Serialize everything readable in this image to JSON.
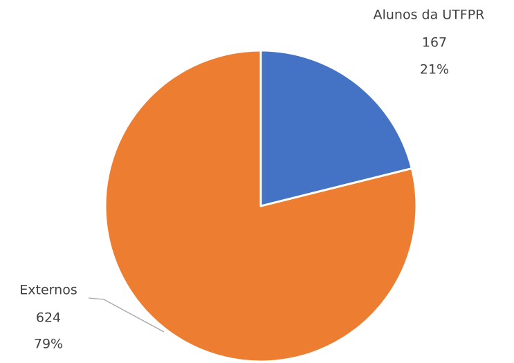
{
  "chart_data": {
    "type": "pie",
    "categories": [
      "Alunos da UTFPR",
      "Externos"
    ],
    "values": [
      167,
      624
    ],
    "percent_labels": [
      "21%",
      "79%"
    ],
    "colors": [
      "#4472c4",
      "#ed7d31"
    ]
  }
}
